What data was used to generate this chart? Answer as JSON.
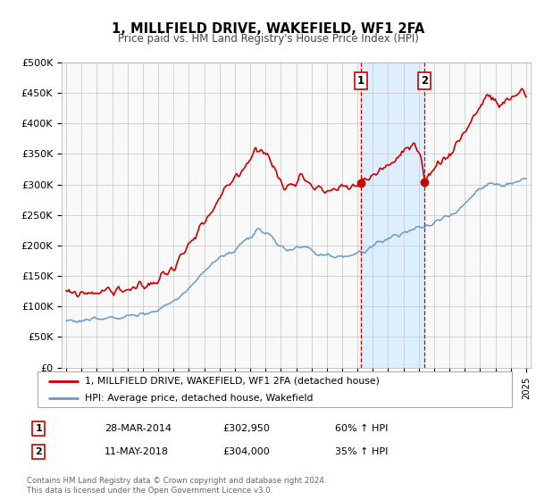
{
  "title": "1, MILLFIELD DRIVE, WAKEFIELD, WF1 2FA",
  "subtitle": "Price paid vs. HM Land Registry's House Price Index (HPI)",
  "legend_label_red": "1, MILLFIELD DRIVE, WAKEFIELD, WF1 2FA (detached house)",
  "legend_label_blue": "HPI: Average price, detached house, Wakefield",
  "sale1_date": "28-MAR-2014",
  "sale1_price": 302950,
  "sale1_hpi": "60% ↑ HPI",
  "sale1_label": "1",
  "sale2_date": "11-MAY-2018",
  "sale2_price": 304000,
  "sale2_hpi": "35% ↑ HPI",
  "sale2_label": "2",
  "footer1": "Contains HM Land Registry data © Crown copyright and database right 2024.",
  "footer2": "This data is licensed under the Open Government Licence v3.0.",
  "red_color": "#cc0000",
  "blue_color": "#6699cc",
  "shade_color": "#ddeeff",
  "grid_color": "#cccccc",
  "background_color": "#f9f9f9",
  "ylim": [
    0,
    500000
  ],
  "yticks": [
    0,
    50000,
    100000,
    150000,
    200000,
    250000,
    300000,
    350000,
    400000,
    450000,
    500000
  ],
  "sale1_year": 2014.23,
  "sale2_year": 2018.36,
  "xmin": 1994.7,
  "xmax": 2025.3
}
